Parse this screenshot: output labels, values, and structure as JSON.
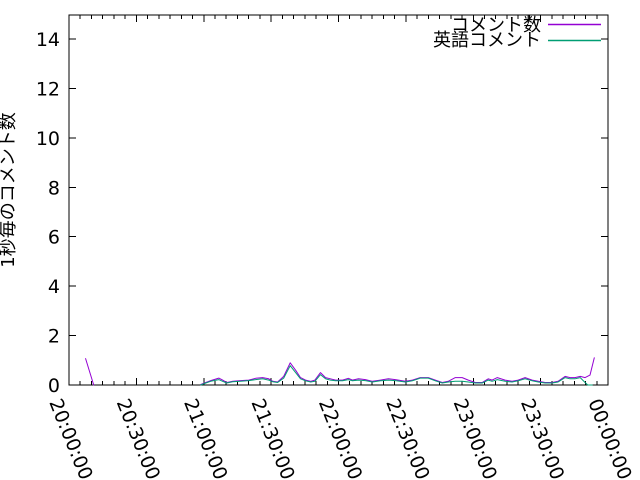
{
  "chart": {
    "background": "#ffffff",
    "border_color": "#000000",
    "legend_position": "top-right-inside"
  },
  "chart_data": {
    "type": "line",
    "title": "",
    "xlabel": "",
    "ylabel": "1秒毎のコメント数",
    "x_unit": "minutes after 20:00:00",
    "ylim": [
      0,
      15
    ],
    "y_ticks": [
      0,
      2,
      4,
      6,
      8,
      10,
      12,
      14
    ],
    "x_minor_tick_minutes": 5,
    "grid": false,
    "x_ticks": [
      {
        "t": 0,
        "label": "20:00:00"
      },
      {
        "t": 30,
        "label": "20:30:00"
      },
      {
        "t": 60,
        "label": "21:00:00"
      },
      {
        "t": 90,
        "label": "21:30:00"
      },
      {
        "t": 120,
        "label": "22:00:00"
      },
      {
        "t": 150,
        "label": "22:30:00"
      },
      {
        "t": 180,
        "label": "23:00:00"
      },
      {
        "t": 210,
        "label": "23:30:00"
      },
      {
        "t": 240,
        "label": "00:00:00"
      }
    ],
    "series": [
      {
        "name": "コメント数",
        "color": "#9400d3",
        "segments": [
          [
            [
              7.4,
              1.07
            ],
            [
              11,
              0
            ]
          ],
          [
            [
              58.7,
              0.02
            ],
            [
              60.9,
              0.1
            ],
            [
              63.1,
              0.18
            ],
            [
              66.7,
              0.28
            ],
            [
              68.4,
              0.2
            ],
            [
              70.2,
              0.1
            ],
            [
              72.9,
              0.15
            ],
            [
              76.4,
              0.18
            ],
            [
              80,
              0.2
            ],
            [
              83.1,
              0.27
            ],
            [
              86.2,
              0.3
            ],
            [
              88.9,
              0.25
            ],
            [
              90.7,
              0.15
            ],
            [
              92.9,
              0.12
            ],
            [
              95.6,
              0.35
            ],
            [
              98.5,
              0.9
            ],
            [
              100.9,
              0.6
            ],
            [
              103.1,
              0.3
            ],
            [
              105.3,
              0.2
            ],
            [
              107.6,
              0.15
            ],
            [
              109.5,
              0.2
            ],
            [
              112,
              0.5
            ],
            [
              114.2,
              0.3
            ],
            [
              116.4,
              0.25
            ],
            [
              118.7,
              0.2
            ],
            [
              121.8,
              0.2
            ],
            [
              124.4,
              0.27
            ],
            [
              126.2,
              0.2
            ],
            [
              128.9,
              0.25
            ],
            [
              132,
              0.22
            ],
            [
              135.1,
              0.15
            ],
            [
              138.7,
              0.2
            ],
            [
              142.2,
              0.25
            ],
            [
              145.3,
              0.22
            ],
            [
              149.8,
              0.15
            ],
            [
              152.9,
              0.2
            ],
            [
              156.4,
              0.3
            ],
            [
              160,
              0.3
            ],
            [
              163.1,
              0.2
            ],
            [
              166.2,
              0.1
            ],
            [
              168.9,
              0.15
            ],
            [
              172,
              0.3
            ],
            [
              175.1,
              0.3
            ],
            [
              177.8,
              0.2
            ],
            [
              180.9,
              0.1
            ],
            [
              184,
              0.1
            ],
            [
              186.7,
              0.25
            ],
            [
              188.4,
              0.2
            ],
            [
              190.7,
              0.3
            ],
            [
              194.2,
              0.2
            ],
            [
              197.3,
              0.15
            ],
            [
              200,
              0.2
            ],
            [
              203.1,
              0.3
            ],
            [
              206.2,
              0.2
            ],
            [
              208.9,
              0.15
            ],
            [
              212,
              0.1
            ],
            [
              215.1,
              0.1
            ],
            [
              217.8,
              0.15
            ],
            [
              220.9,
              0.35
            ],
            [
              223.1,
              0.3
            ],
            [
              225.3,
              0.3
            ],
            [
              227.6,
              0.35
            ],
            [
              229.8,
              0.3
            ],
            [
              232,
              0.4
            ],
            [
              233.9,
              1.1
            ]
          ]
        ]
      },
      {
        "name": "英語コメント",
        "color": "#009e73",
        "segments": [
          [
            [
              58.7,
              0
            ],
            [
              60.9,
              0.08
            ],
            [
              63.1,
              0.15
            ],
            [
              66.7,
              0.22
            ],
            [
              68.4,
              0.15
            ],
            [
              70.2,
              0.08
            ],
            [
              72.9,
              0.13
            ],
            [
              76.4,
              0.15
            ],
            [
              80,
              0.18
            ],
            [
              83.1,
              0.22
            ],
            [
              86.2,
              0.25
            ],
            [
              88.9,
              0.2
            ],
            [
              90.7,
              0.13
            ],
            [
              92.9,
              0.1
            ],
            [
              95.6,
              0.28
            ],
            [
              98.5,
              0.78
            ],
            [
              100.9,
              0.5
            ],
            [
              103.1,
              0.25
            ],
            [
              105.3,
              0.17
            ],
            [
              107.6,
              0.12
            ],
            [
              109.5,
              0.15
            ],
            [
              112,
              0.42
            ],
            [
              114.2,
              0.25
            ],
            [
              116.4,
              0.2
            ],
            [
              118.7,
              0.17
            ],
            [
              121.8,
              0.17
            ],
            [
              124.4,
              0.22
            ],
            [
              126.2,
              0.17
            ],
            [
              128.9,
              0.2
            ],
            [
              132,
              0.18
            ],
            [
              135.1,
              0.12
            ],
            [
              138.7,
              0.17
            ],
            [
              142.2,
              0.2
            ],
            [
              145.3,
              0.18
            ],
            [
              149.8,
              0.12
            ],
            [
              152.9,
              0.17
            ],
            [
              156.4,
              0.28
            ],
            [
              160,
              0.28
            ],
            [
              163.1,
              0.17
            ],
            [
              166.2,
              0.08
            ],
            [
              168.9,
              0.12
            ],
            [
              172,
              0.15
            ],
            [
              175.1,
              0.15
            ],
            [
              177.8,
              0.12
            ],
            [
              180.9,
              0.08
            ],
            [
              184,
              0.08
            ],
            [
              186.7,
              0.2
            ],
            [
              188.4,
              0.15
            ],
            [
              190.7,
              0.22
            ],
            [
              194.2,
              0.15
            ],
            [
              197.3,
              0.12
            ],
            [
              200,
              0.17
            ],
            [
              203.1,
              0.25
            ],
            [
              206.2,
              0.17
            ],
            [
              208.9,
              0.12
            ],
            [
              212,
              0.08
            ],
            [
              215.1,
              0.08
            ],
            [
              217.8,
              0.12
            ],
            [
              220.9,
              0.3
            ],
            [
              223.1,
              0.25
            ],
            [
              225.3,
              0.25
            ],
            [
              227.6,
              0.3
            ],
            [
              229.8,
              0.1
            ],
            [
              231,
              0
            ],
            [
              233,
              0
            ]
          ]
        ]
      }
    ]
  }
}
